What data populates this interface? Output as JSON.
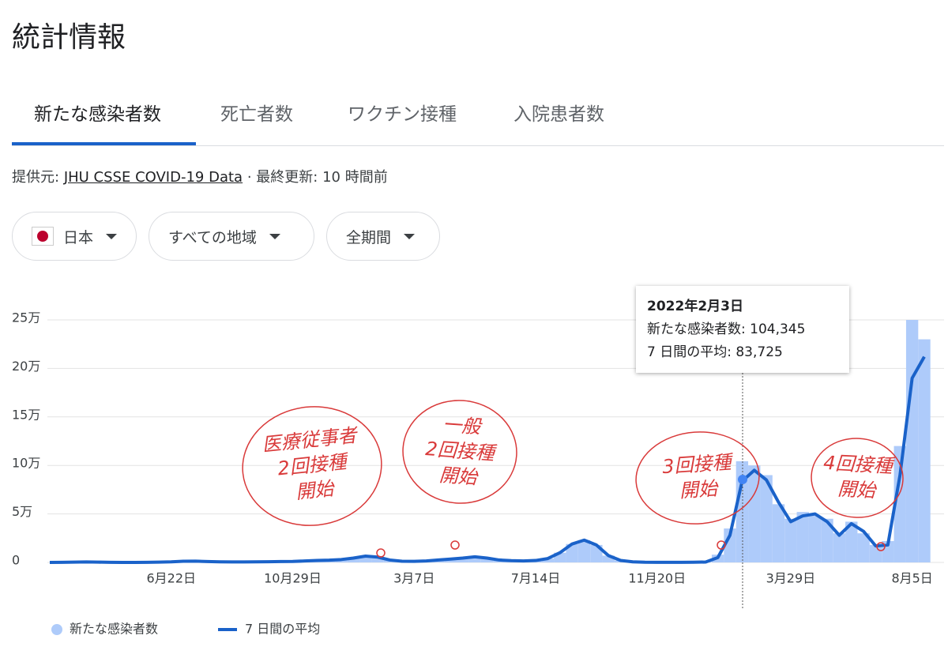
{
  "header": {
    "title": "統計情報"
  },
  "tabs": [
    "新たな感染者数",
    "死亡者数",
    "ワクチン接種",
    "入院患者数"
  ],
  "source": {
    "label": "提供元:",
    "link": "JHU CSSE COVID-19 Data",
    "separator": "·",
    "updated": "最終更新: 10 時間前"
  },
  "filters": [
    "日本",
    "すべての地域",
    "全期間"
  ],
  "chart_data": {
    "type": "line",
    "categories": [
      null,
      null,
      null,
      null,
      null,
      null,
      null,
      null,
      null,
      null,
      "6月22日",
      null,
      null,
      null,
      null,
      null,
      null,
      null,
      null,
      null,
      "10月29日",
      null,
      null,
      null,
      null,
      null,
      null,
      null,
      null,
      null,
      "3月7日",
      null,
      null,
      null,
      null,
      null,
      null,
      null,
      null,
      null,
      "7月14日",
      null,
      null,
      null,
      null,
      null,
      null,
      null,
      null,
      null,
      "11月20日",
      null,
      null,
      null,
      null,
      null,
      null,
      null,
      null,
      null,
      null,
      "3月29日",
      null,
      null,
      null,
      null,
      null,
      null,
      null,
      null,
      null,
      "8月5日",
      null
    ],
    "series": [
      {
        "name": "新たな感染者数",
        "type": "bar",
        "color": "#aecbfa",
        "values": [
          0,
          100,
          300,
          500,
          300,
          100,
          50,
          50,
          100,
          300,
          600,
          1200,
          1300,
          900,
          600,
          500,
          500,
          600,
          700,
          900,
          1000,
          1500,
          2000,
          2300,
          3000,
          4500,
          6500,
          5500,
          2500,
          1200,
          1100,
          1500,
          2500,
          3500,
          4500,
          5800,
          4500,
          2500,
          1800,
          1500,
          2000,
          4000,
          10000,
          19000,
          23000,
          18000,
          7000,
          2000,
          600,
          200,
          150,
          150,
          150,
          200,
          400,
          8000,
          35000,
          104345,
          100000,
          90000,
          60000,
          45000,
          52000,
          48000,
          45000,
          30000,
          42000,
          30000,
          18000,
          22000,
          120000,
          250000,
          230000
        ]
      },
      {
        "name": "7 日間の平均",
        "type": "line",
        "color": "#1a62c9",
        "values": [
          0,
          100,
          300,
          500,
          300,
          100,
          50,
          50,
          100,
          300,
          600,
          1200,
          1300,
          900,
          600,
          500,
          500,
          600,
          700,
          900,
          1000,
          1500,
          2000,
          2300,
          3000,
          4500,
          6500,
          5500,
          2500,
          1200,
          1100,
          1500,
          2500,
          3500,
          4500,
          5800,
          4500,
          2500,
          1800,
          1500,
          2000,
          4000,
          10000,
          19000,
          23000,
          18000,
          7000,
          2000,
          600,
          200,
          150,
          150,
          150,
          200,
          400,
          5000,
          28000,
          83725,
          95000,
          85000,
          62000,
          42000,
          48000,
          50000,
          42000,
          28000,
          40000,
          32000,
          17000,
          18000,
          90000,
          190000,
          212000
        ]
      }
    ],
    "ylim": [
      0,
      250000
    ],
    "yticks": [
      0,
      {
        "value": 50000,
        "label": "5万"
      },
      {
        "value": 100000,
        "label": "10万"
      },
      {
        "value": 150000,
        "label": "15万"
      },
      {
        "value": 200000,
        "label": "20万"
      },
      {
        "value": 250000,
        "label": "25万"
      }
    ],
    "grid": true,
    "tooltip": {
      "title": "2022年2月3日",
      "lines": [
        "新たな感染者数: 104,345",
        "7 日間の平均: 83,725"
      ]
    },
    "annotations": [
      {
        "lines": [
          "医療従事者",
          "2回接種",
          "開始"
        ]
      },
      {
        "lines": [
          "一般",
          "2回接種",
          "開始"
        ]
      },
      {
        "lines": [
          "3回接種",
          "開始"
        ]
      },
      {
        "lines": [
          "4回接種",
          "開始"
        ]
      }
    ]
  }
}
